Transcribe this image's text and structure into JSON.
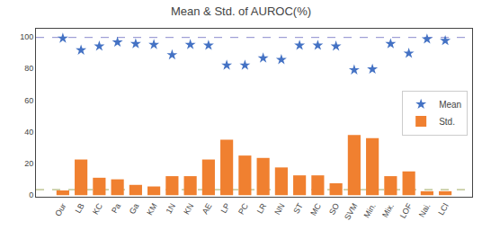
{
  "chart_data": {
    "type": "bar",
    "title": "Mean & Std. of AUROC(%)",
    "categories": [
      "Our",
      "LB",
      "KC",
      "Pa",
      "Ga",
      "KM",
      "1N",
      "KN",
      "AE",
      "LP",
      "PC",
      "LR",
      "NN",
      "ST",
      "MC",
      "SO",
      "SVM",
      "Min.",
      "Mix.",
      "LOF",
      "Nai.",
      "LCl"
    ],
    "series": [
      {
        "name": "Mean",
        "type": "scatter",
        "marker": "star",
        "color": "#4472c4",
        "values": [
          99.0,
          91.5,
          94.0,
          96.5,
          95.5,
          95.0,
          88.5,
          95.0,
          94.5,
          82.0,
          82.0,
          86.5,
          85.5,
          94.5,
          94.5,
          94.0,
          79.0,
          79.5,
          95.5,
          89.5,
          98.5,
          97.5
        ]
      },
      {
        "name": "Std.",
        "type": "bar",
        "color": "#f08030",
        "values": [
          3.0,
          22.5,
          11.0,
          10.0,
          6.5,
          5.5,
          12.0,
          12.0,
          22.5,
          35.0,
          25.0,
          23.5,
          17.5,
          12.5,
          12.5,
          7.5,
          38.0,
          36.0,
          12.0,
          15.0,
          2.5,
          2.5
        ]
      }
    ],
    "hlines": [
      {
        "value": 99.5,
        "color": "#8888cc",
        "line_style": "dashed"
      },
      {
        "value": 3.5,
        "color": "#a0a860",
        "line_style": "dashed"
      }
    ],
    "ylim": [
      -1,
      105
    ],
    "yticks": [
      0,
      20,
      40,
      60,
      80,
      100
    ],
    "grid": false,
    "legend": "right"
  }
}
